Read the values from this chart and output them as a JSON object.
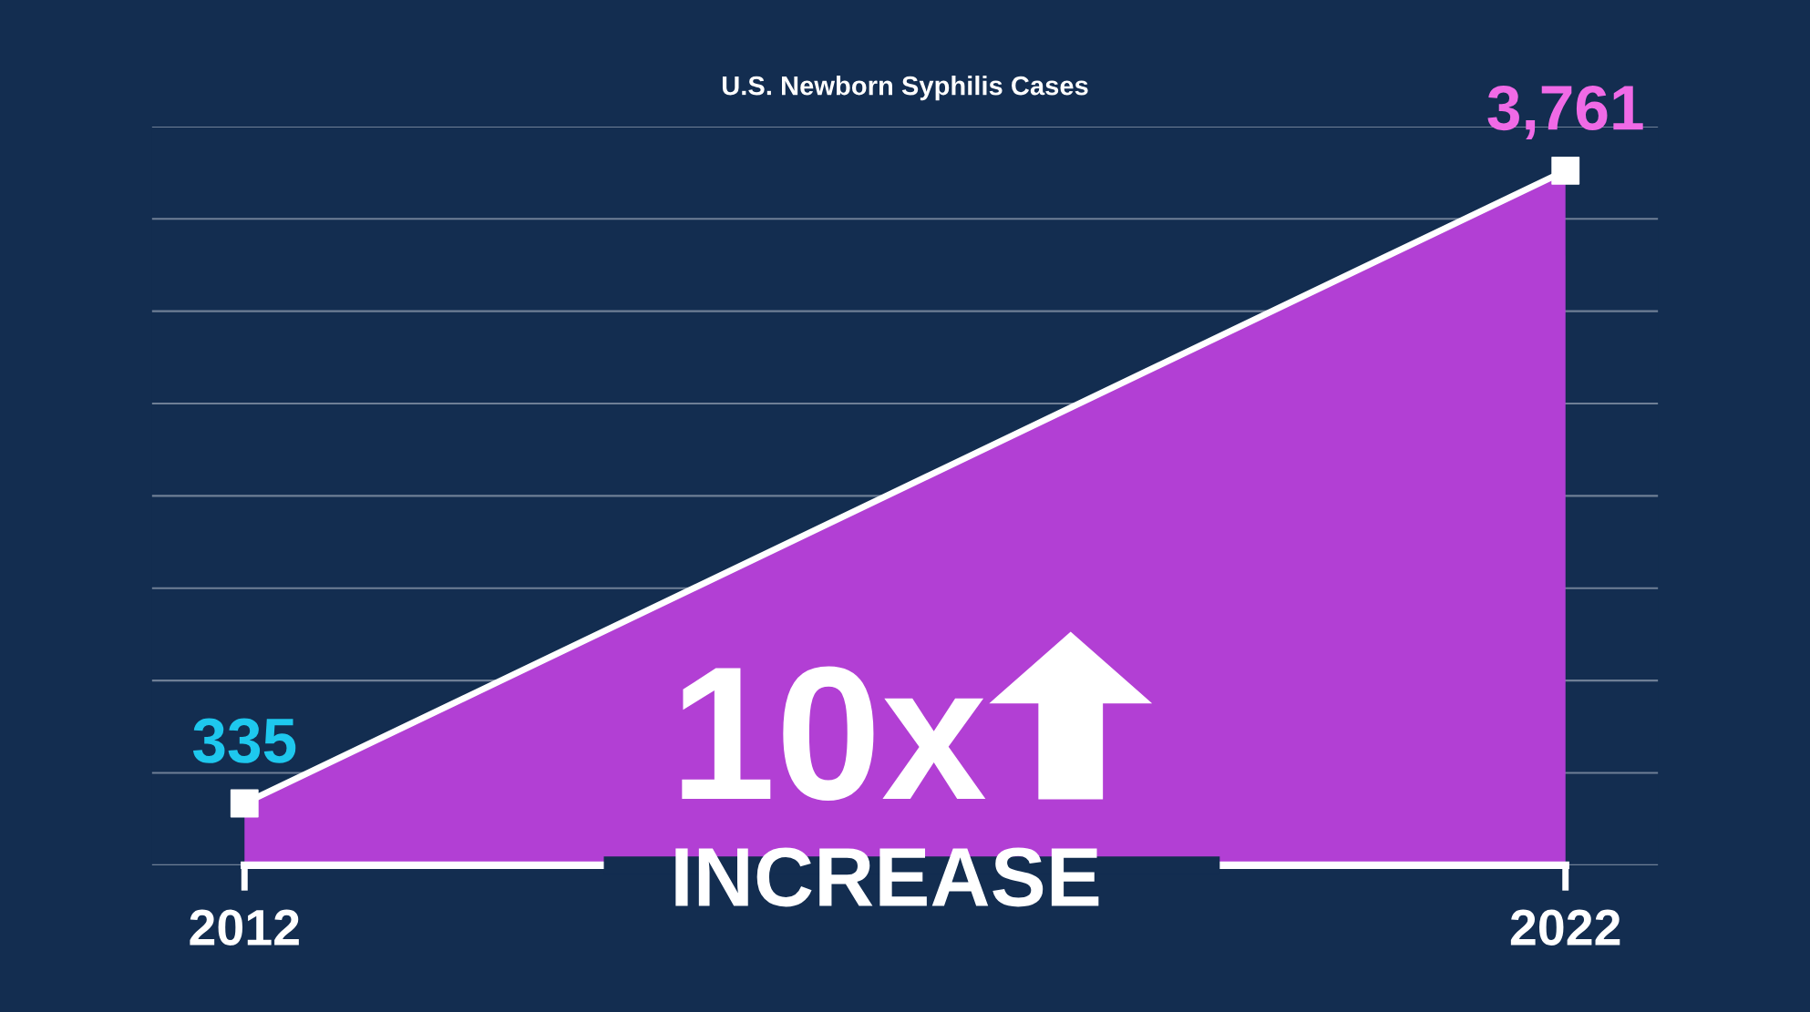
{
  "chart_data": {
    "type": "area",
    "title": "U.S. Newborn Syphilis Cases",
    "x": [
      2012,
      2022
    ],
    "series": [
      {
        "color": "#b23fd4",
        "colors": [
          "#1ec8ee",
          "#f06ae6"
        ],
        "values": [
          335,
          3761
        ],
        "value_labels": [
          "335",
          "3,761"
        ]
      }
    ],
    "xlim": [
      2011.3,
      2022.7
    ],
    "xticks": [
      2012,
      2022
    ],
    "ylim": [
      0,
      4000
    ],
    "yticks": [
      {
        "value": 0,
        "label": null
      },
      {
        "value": 500,
        "label": null
      },
      {
        "value": 1000,
        "label": null
      },
      {
        "value": 1500,
        "label": null
      },
      {
        "value": 2000,
        "label": null
      },
      {
        "value": 2500,
        "label": null
      },
      {
        "value": 3000,
        "label": null
      },
      {
        "value": 3500,
        "label": null
      },
      {
        "value": 4000,
        "label": null
      }
    ],
    "grid": "y",
    "tick_labels": "x",
    "marker": "square",
    "annotations": [
      "10x",
      "INCREASE"
    ]
  }
}
